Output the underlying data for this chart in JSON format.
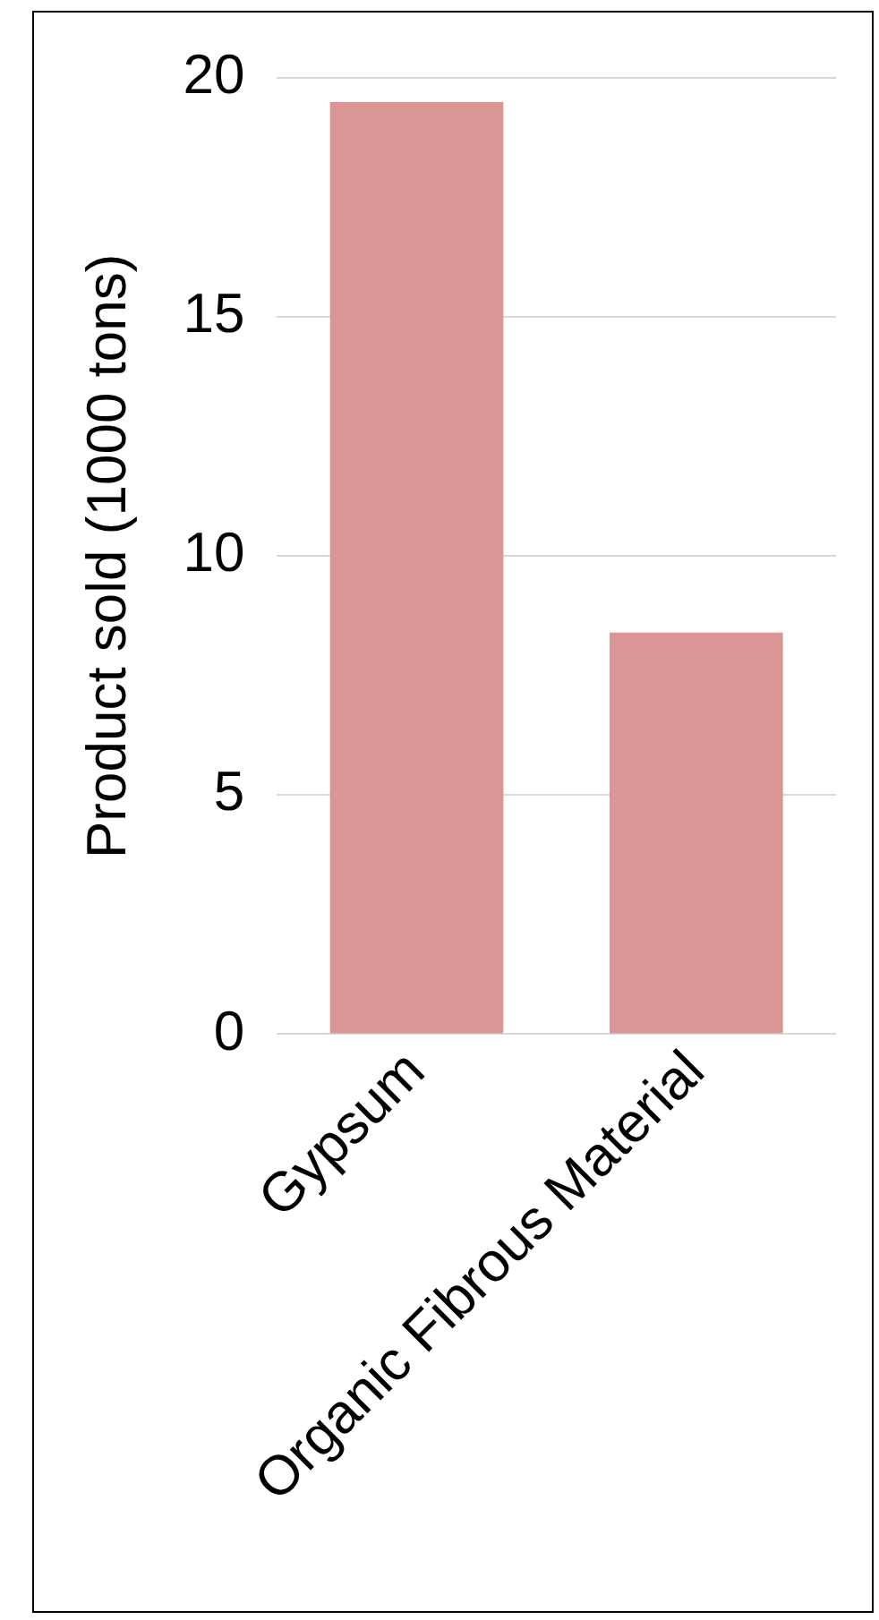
{
  "chart_data": {
    "type": "bar",
    "ylabel": "Product sold (1000 tons)",
    "categories": [
      "Gypsum",
      "Organic Fibrous Material"
    ],
    "values": [
      19.5,
      8.4
    ],
    "color": "#da9694",
    "ylim": [
      0,
      20
    ],
    "yticks": [
      0,
      5,
      10,
      15,
      20
    ],
    "grid": "y"
  }
}
